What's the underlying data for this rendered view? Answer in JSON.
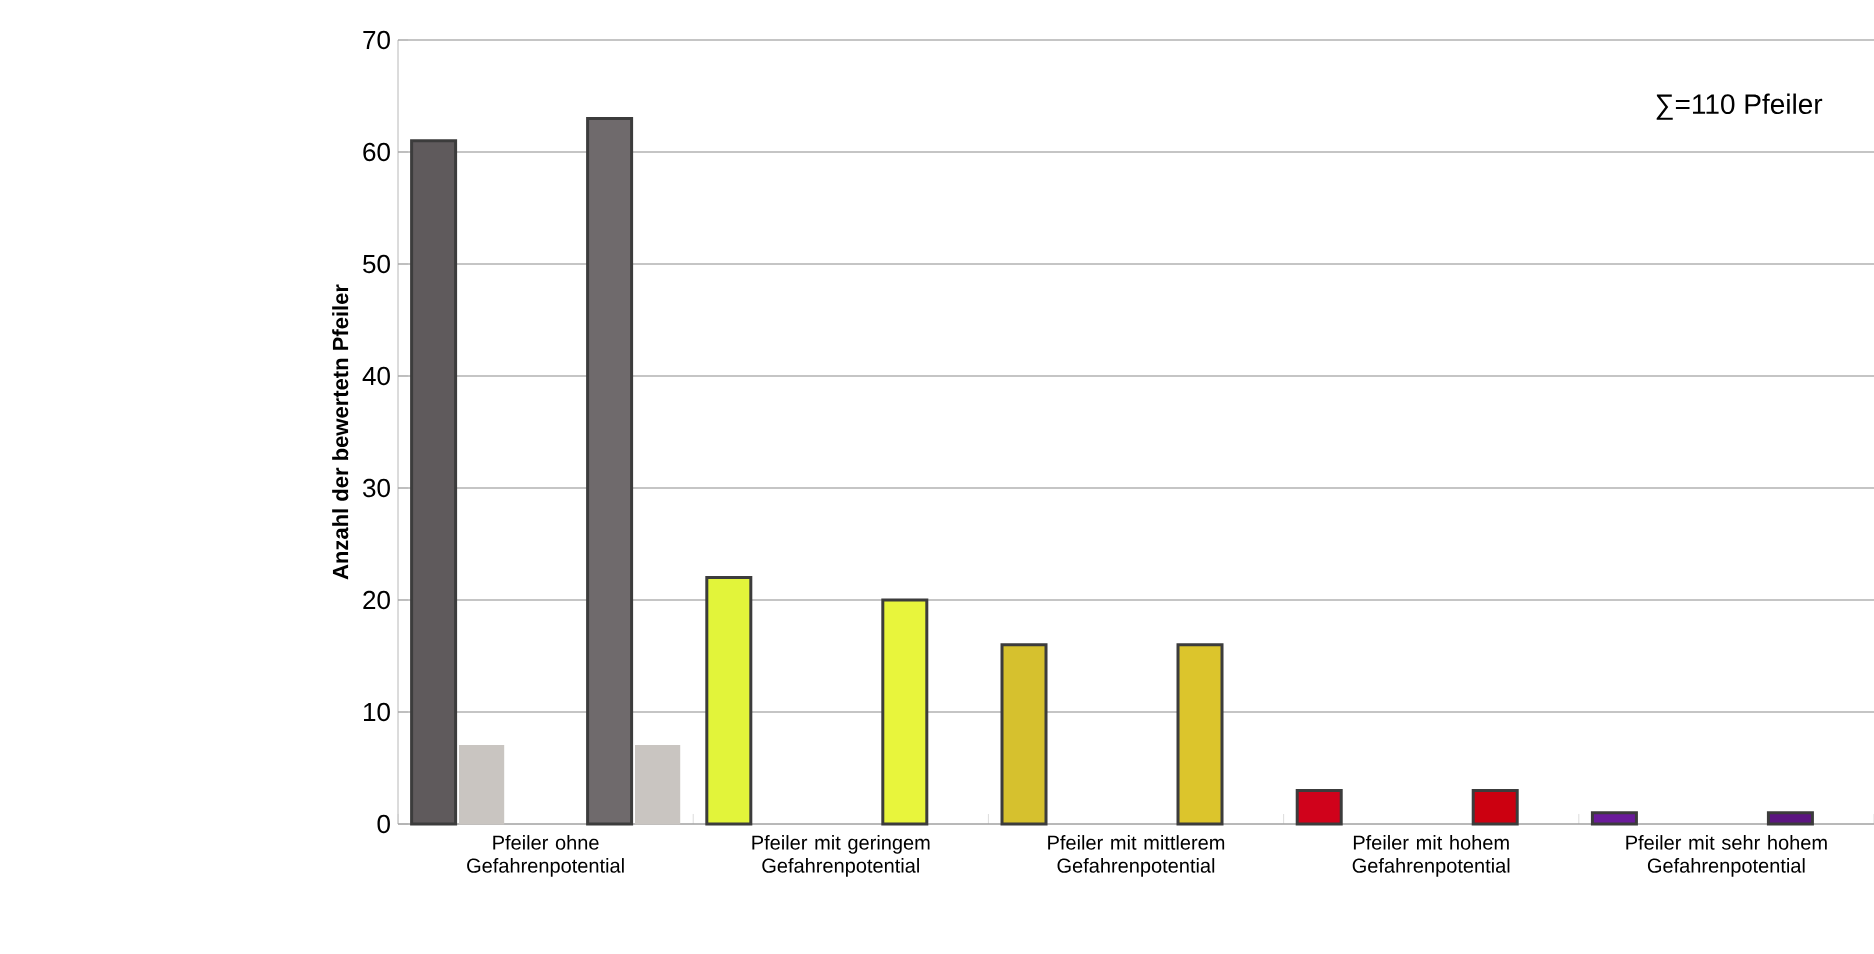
{
  "chart_data": {
    "type": "bar",
    "ylabel": "Anzahl der bewertetn Pfeiler",
    "categories": [
      "Pfeiler ohne Gefahrenpotential",
      "Pfeiler mit geringem Gefahrenpotential",
      "Pfeiler mit mittlerem Gefahrenpotential",
      "Pfeiler mit hohem Gefahrenpotential",
      "Pfeiler mit sehr hohem Gefahrenpotential"
    ],
    "series": [
      {
        "colors": [
          "#5f5a5c",
          "#e2f43a",
          "#d6c12e",
          "#d0021b",
          "#6a1b9a"
        ],
        "values": [
          61,
          22,
          16,
          3,
          1
        ]
      },
      {
        "color": "#c9c5c1",
        "values": [
          7,
          null,
          null,
          null,
          null
        ]
      },
      {
        "colors": [
          "#6f6a6c",
          "#e8f53c",
          "#dcc52c",
          "#cc0010",
          "#5b1580"
        ],
        "values": [
          63,
          20,
          16,
          3,
          1
        ]
      },
      {
        "color": "#c9c5c1",
        "values": [
          7,
          null,
          null,
          null,
          null
        ]
      }
    ],
    "ylim": [
      0,
      70
    ],
    "yticks": [
      0,
      10,
      20,
      30,
      40,
      50,
      60,
      70
    ],
    "grid": "y",
    "annotations": [
      "∑=110 Pfeiler"
    ]
  }
}
